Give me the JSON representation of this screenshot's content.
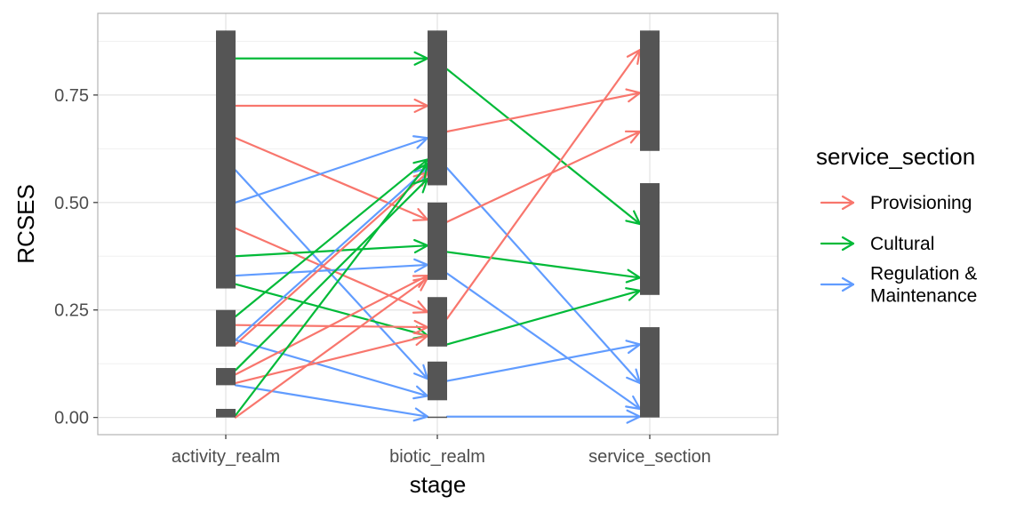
{
  "chart_data": {
    "type": "alluvial",
    "xlabel": "stage",
    "ylabel": "RCSES",
    "stages": [
      "activity_realm",
      "biotic_realm",
      "service_section"
    ],
    "ylim": [
      -0.04,
      0.94
    ],
    "yticks": [
      0.0,
      0.25,
      0.5,
      0.75
    ],
    "ytick_labels": [
      "0.00",
      "0.25",
      "0.50",
      "0.75"
    ],
    "grid": true,
    "legend": {
      "title": "service_section",
      "placement": "right",
      "entries": [
        {
          "label": "Provisioning",
          "color": "#F8766D"
        },
        {
          "label": "Cultural",
          "color": "#00BA38"
        },
        {
          "label": [
            "Regulation &",
            "Maintenance"
          ],
          "color": "#619CFF"
        }
      ]
    },
    "strata": [
      {
        "stage": 0,
        "ymin": 0.0,
        "ymax": 0.02
      },
      {
        "stage": 0,
        "ymin": 0.075,
        "ymax": 0.115
      },
      {
        "stage": 0,
        "ymin": 0.165,
        "ymax": 0.25
      },
      {
        "stage": 0,
        "ymin": 0.3,
        "ymax": 0.9
      },
      {
        "stage": 1,
        "ymin": 0.0,
        "ymax": 0.002
      },
      {
        "stage": 1,
        "ymin": 0.04,
        "ymax": 0.13
      },
      {
        "stage": 1,
        "ymin": 0.165,
        "ymax": 0.28
      },
      {
        "stage": 1,
        "ymin": 0.32,
        "ymax": 0.5
      },
      {
        "stage": 1,
        "ymin": 0.54,
        "ymax": 0.9
      },
      {
        "stage": 2,
        "ymin": 0.0,
        "ymax": 0.21
      },
      {
        "stage": 2,
        "ymin": 0.285,
        "ymax": 0.545
      },
      {
        "stage": 2,
        "ymin": 0.62,
        "ymax": 0.9
      }
    ],
    "flows": [
      {
        "from": 0,
        "to": 1,
        "y0": 0.835,
        "y1": 0.835,
        "group": "Cultural"
      },
      {
        "from": 0,
        "to": 1,
        "y0": 0.725,
        "y1": 0.725,
        "group": "Provisioning"
      },
      {
        "from": 0,
        "to": 1,
        "y0": 0.65,
        "y1": 0.46,
        "group": "Provisioning"
      },
      {
        "from": 0,
        "to": 1,
        "y0": 0.575,
        "y1": 0.09,
        "group": "Regulation & Maintenance"
      },
      {
        "from": 0,
        "to": 1,
        "y0": 0.5,
        "y1": 0.65,
        "group": "Regulation & Maintenance"
      },
      {
        "from": 0,
        "to": 1,
        "y0": 0.44,
        "y1": 0.245,
        "group": "Provisioning"
      },
      {
        "from": 0,
        "to": 1,
        "y0": 0.375,
        "y1": 0.4,
        "group": "Cultural"
      },
      {
        "from": 0,
        "to": 1,
        "y0": 0.33,
        "y1": 0.355,
        "group": "Regulation & Maintenance"
      },
      {
        "from": 0,
        "to": 1,
        "y0": 0.31,
        "y1": 0.19,
        "group": "Cultural"
      },
      {
        "from": 0,
        "to": 1,
        "y0": 0.235,
        "y1": 0.6,
        "group": "Cultural"
      },
      {
        "from": 0,
        "to": 1,
        "y0": 0.215,
        "y1": 0.21,
        "group": "Provisioning"
      },
      {
        "from": 0,
        "to": 1,
        "y0": 0.18,
        "y1": 0.58,
        "group": "Regulation & Maintenance"
      },
      {
        "from": 0,
        "to": 1,
        "y0": 0.17,
        "y1": 0.57,
        "group": "Provisioning"
      },
      {
        "from": 0,
        "to": 1,
        "y0": 0.18,
        "y1": 0.05,
        "group": "Regulation & Maintenance"
      },
      {
        "from": 0,
        "to": 1,
        "y0": 0.11,
        "y1": 0.555,
        "group": "Cultural"
      },
      {
        "from": 0,
        "to": 1,
        "y0": 0.1,
        "y1": 0.33,
        "group": "Provisioning"
      },
      {
        "from": 0,
        "to": 1,
        "y0": 0.08,
        "y1": 0.19,
        "group": "Provisioning"
      },
      {
        "from": 0,
        "to": 1,
        "y0": 0.075,
        "y1": 0.002,
        "group": "Regulation & Maintenance"
      },
      {
        "from": 0,
        "to": 1,
        "y0": 0.005,
        "y1": 0.59,
        "group": "Cultural"
      },
      {
        "from": 0,
        "to": 1,
        "y0": 0.0,
        "y1": 0.325,
        "group": "Provisioning"
      },
      {
        "from": 1,
        "to": 2,
        "y0": 0.81,
        "y1": 0.45,
        "group": "Cultural"
      },
      {
        "from": 1,
        "to": 2,
        "y0": 0.665,
        "y1": 0.755,
        "group": "Provisioning"
      },
      {
        "from": 1,
        "to": 2,
        "y0": 0.58,
        "y1": 0.08,
        "group": "Regulation & Maintenance"
      },
      {
        "from": 1,
        "to": 2,
        "y0": 0.455,
        "y1": 0.665,
        "group": "Provisioning"
      },
      {
        "from": 1,
        "to": 2,
        "y0": 0.385,
        "y1": 0.325,
        "group": "Cultural"
      },
      {
        "from": 1,
        "to": 2,
        "y0": 0.335,
        "y1": 0.02,
        "group": "Regulation & Maintenance"
      },
      {
        "from": 1,
        "to": 2,
        "y0": 0.23,
        "y1": 0.855,
        "group": "Provisioning"
      },
      {
        "from": 1,
        "to": 2,
        "y0": 0.17,
        "y1": 0.295,
        "group": "Cultural"
      },
      {
        "from": 1,
        "to": 2,
        "y0": 0.085,
        "y1": 0.17,
        "group": "Regulation & Maintenance"
      },
      {
        "from": 1,
        "to": 2,
        "y0": 0.002,
        "y1": 0.002,
        "group": "Regulation & Maintenance"
      }
    ]
  }
}
